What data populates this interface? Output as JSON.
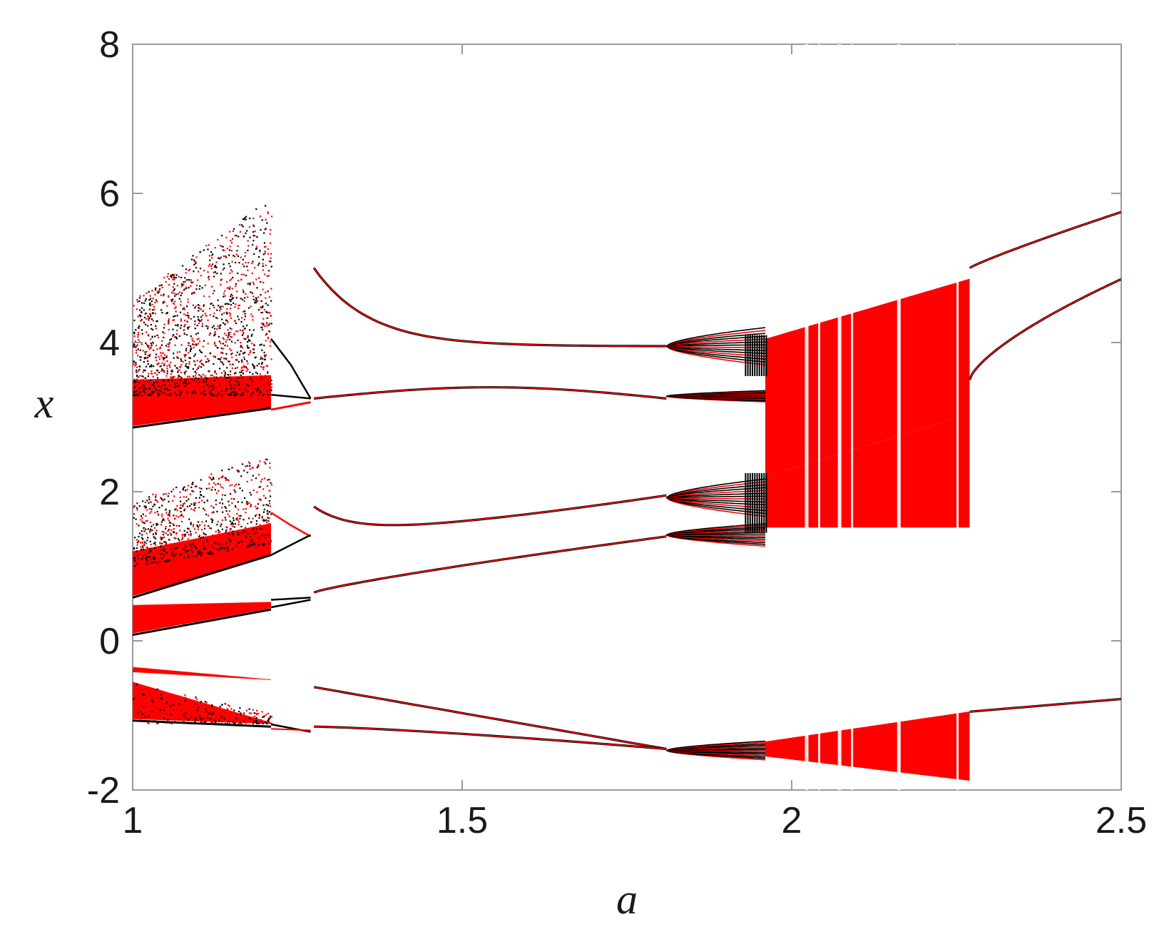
{
  "chart_data": {
    "type": "scatter",
    "title": "",
    "xlabel": "a",
    "ylabel": "x",
    "xlim": [
      1,
      2.5
    ],
    "ylim": [
      -2,
      8
    ],
    "xticks": [
      1,
      1.5,
      2,
      2.5
    ],
    "xtick_labels": [
      "1",
      "1.5",
      "2",
      "2.5"
    ],
    "yticks": [
      -2,
      0,
      2,
      4,
      6,
      8
    ],
    "ytick_labels": [
      "-2",
      "0",
      "2",
      "4",
      "6",
      "8"
    ],
    "grid": false,
    "legend": "none",
    "colors": {
      "series_1": "#000000",
      "series_2": "#ff0000",
      "axes": "#9a9a9a"
    },
    "regions": [
      {
        "name": "upper chaotic band",
        "a_range": [
          1.0,
          1.21
        ],
        "x_range": [
          2.85,
          6.3
        ]
      },
      {
        "name": "middle chaotic band",
        "a_range": [
          1.0,
          1.21
        ],
        "x_range": [
          0.6,
          2.6
        ]
      },
      {
        "name": "lower chaotic band",
        "a_range": [
          1.0,
          1.21
        ],
        "x_range": [
          0.1,
          0.55
        ]
      },
      {
        "name": "negative thin band",
        "a_range": [
          1.0,
          1.21
        ],
        "x_range": [
          -0.55,
          -0.35
        ]
      },
      {
        "name": "negative chaotic band",
        "a_range": [
          1.0,
          1.21
        ],
        "x_range": [
          -1.15,
          -0.5
        ]
      },
      {
        "name": "chaotic block",
        "a_range": [
          1.96,
          2.27
        ],
        "x_range": [
          -1.9,
          4.85
        ]
      }
    ],
    "branches": [
      {
        "a": [
          1.27,
          1.35,
          1.5,
          1.7,
          1.81
        ],
        "x": [
          5.0,
          4.25,
          4.05,
          4.0,
          3.95
        ]
      },
      {
        "a": [
          1.27,
          1.5,
          1.81
        ],
        "x": [
          3.3,
          3.4,
          3.25
        ]
      },
      {
        "a": [
          1.27,
          1.4,
          1.81
        ],
        "x": [
          1.8,
          1.5,
          1.95
        ]
      },
      {
        "a": [
          1.27,
          1.5,
          1.81
        ],
        "x": [
          0.65,
          1.0,
          1.4
        ]
      },
      {
        "a": [
          1.27,
          1.5,
          1.81
        ],
        "x": [
          -0.62,
          -1.05,
          -1.45
        ]
      },
      {
        "a": [
          1.27,
          1.5,
          1.81
        ],
        "x": [
          -1.15,
          -1.3,
          -1.45
        ]
      },
      {
        "a": [
          2.27,
          2.5
        ],
        "x": [
          5.0,
          5.75
        ]
      },
      {
        "a": [
          2.27,
          2.5
        ],
        "x": [
          3.5,
          4.85
        ]
      },
      {
        "a": [
          2.27,
          2.5
        ],
        "x": [
          -0.95,
          -0.78
        ]
      }
    ]
  }
}
